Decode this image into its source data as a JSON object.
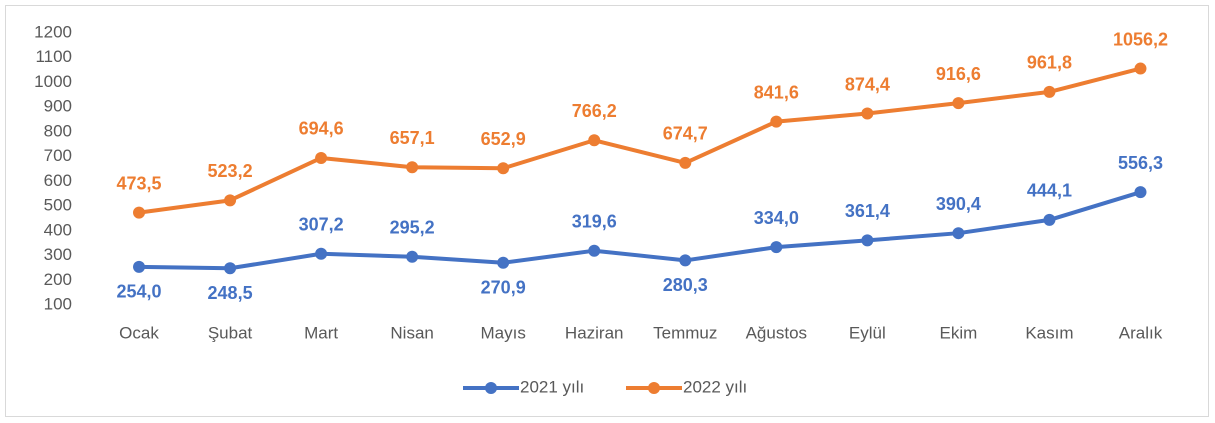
{
  "chart_data": {
    "type": "line",
    "categories": [
      "Ocak",
      "Şubat",
      "Mart",
      "Nisan",
      "Mayıs",
      "Haziran",
      "Temmuz",
      "Ağustos",
      "Eylül",
      "Ekim",
      "Kasım",
      "Aralık"
    ],
    "series": [
      {
        "name": "2021 yılı",
        "color": "#4472c4",
        "values": [
          254.0,
          248.5,
          307.2,
          295.2,
          270.9,
          319.6,
          280.3,
          334.0,
          361.4,
          390.4,
          444.1,
          556.3
        ],
        "value_labels": [
          "254,0",
          "248,5",
          "307,2",
          "295,2",
          "270,9",
          "319,6",
          "280,3",
          "334,0",
          "361,4",
          "390,4",
          "444,1",
          "556,3"
        ]
      },
      {
        "name": "2022 yılı",
        "color": "#ed7d31",
        "values": [
          473.5,
          523.2,
          694.6,
          657.1,
          652.9,
          766.2,
          674.7,
          841.6,
          874.4,
          916.6,
          961.8,
          1056.2
        ],
        "value_labels": [
          "473,5",
          "523,2",
          "694,6",
          "657,1",
          "652,9",
          "766,2",
          "674,7",
          "841,6",
          "874,4",
          "916,6",
          "961,8",
          "1056,2"
        ]
      }
    ],
    "ylim": [
      100,
      1200
    ],
    "yticks": [
      100,
      200,
      300,
      400,
      500,
      600,
      700,
      800,
      900,
      1000,
      1100,
      1200
    ],
    "legend": "bottom"
  }
}
